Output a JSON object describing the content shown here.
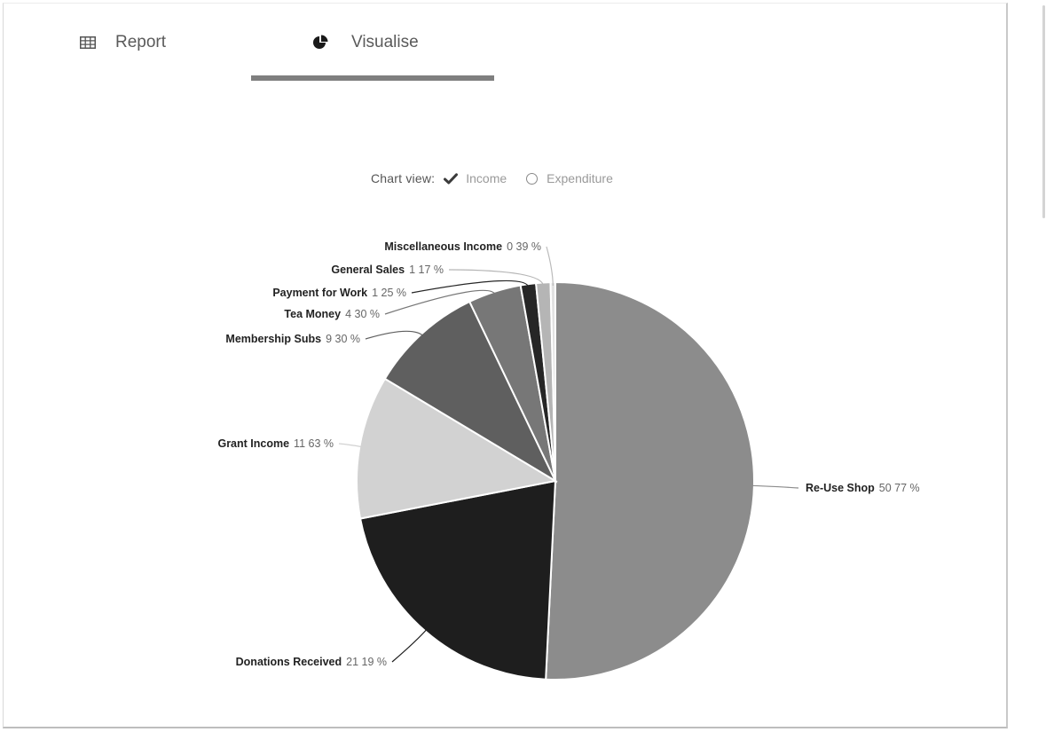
{
  "tabs": {
    "report_label": "Report",
    "visualise_label": "Visualise"
  },
  "chart_view": {
    "label": "Chart view:",
    "income_label": "Income",
    "expenditure_label": "Expenditure",
    "selected": "Income"
  },
  "chart_data": {
    "type": "pie",
    "title": "",
    "slices": [
      {
        "name": "Re-Use Shop",
        "value": 50.77,
        "label": "50 77 %",
        "color": "#8c8c8c"
      },
      {
        "name": "Donations Received",
        "value": 21.19,
        "label": "21 19 %",
        "color": "#1e1e1e"
      },
      {
        "name": "Grant Income",
        "value": 11.63,
        "label": "11 63 %",
        "color": "#d2d2d2"
      },
      {
        "name": "Membership Subs",
        "value": 9.3,
        "label": "9 30 %",
        "color": "#5f5f5f"
      },
      {
        "name": "Tea Money",
        "value": 4.3,
        "label": "4 30 %",
        "color": "#777777"
      },
      {
        "name": "Payment for Work",
        "value": 1.25,
        "label": "1 25 %",
        "color": "#262626"
      },
      {
        "name": "General Sales",
        "value": 1.17,
        "label": "1 17 %",
        "color": "#b5b5b5"
      },
      {
        "name": "Miscellaneous Income",
        "value": 0.39,
        "label": "0 39 %",
        "color": "#e2e2e2"
      }
    ]
  }
}
